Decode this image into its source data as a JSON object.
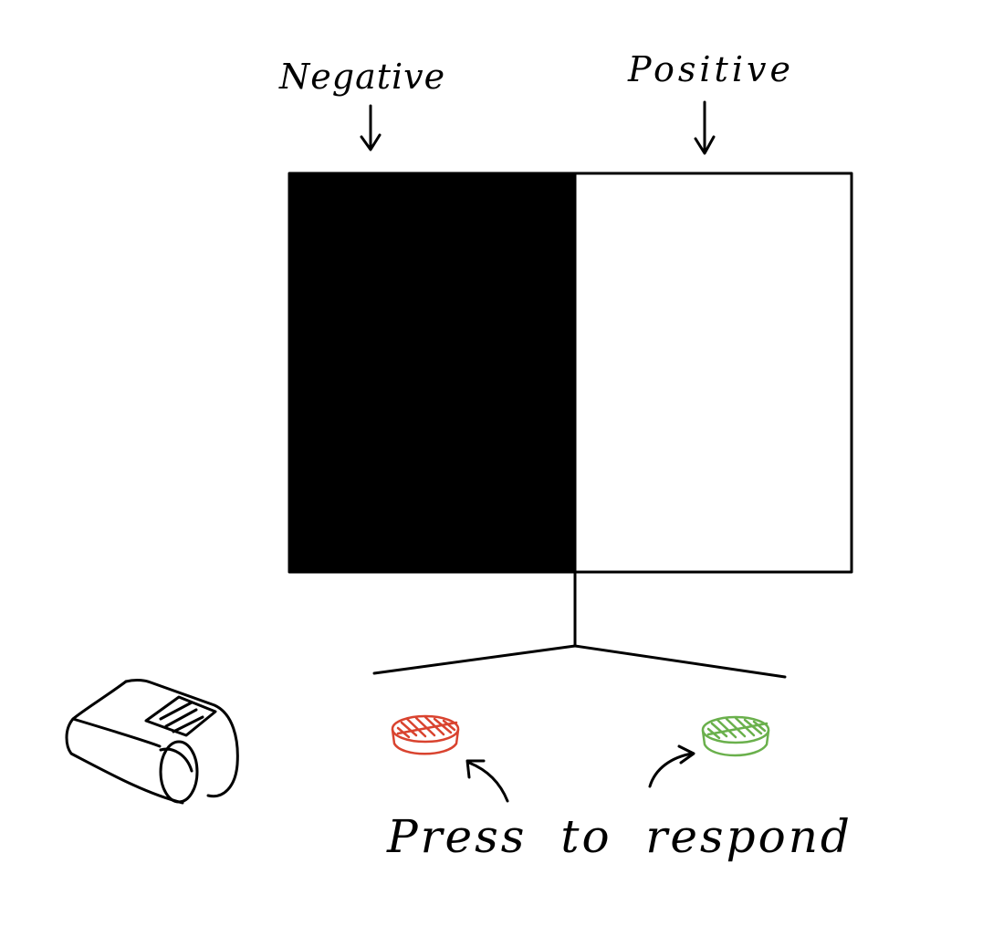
{
  "labels": {
    "negative": "Negative",
    "positive": "Positive",
    "instruction": "Press to respond"
  },
  "colors": {
    "ink": "#000000",
    "negative_panel": "#000000",
    "positive_panel": "#ffffff",
    "red_button": "#d9432f",
    "green_button": "#6ab04c"
  },
  "icons": {
    "printer": "receipt-printer-icon",
    "red_button": "red-response-button",
    "green_button": "green-response-button"
  }
}
